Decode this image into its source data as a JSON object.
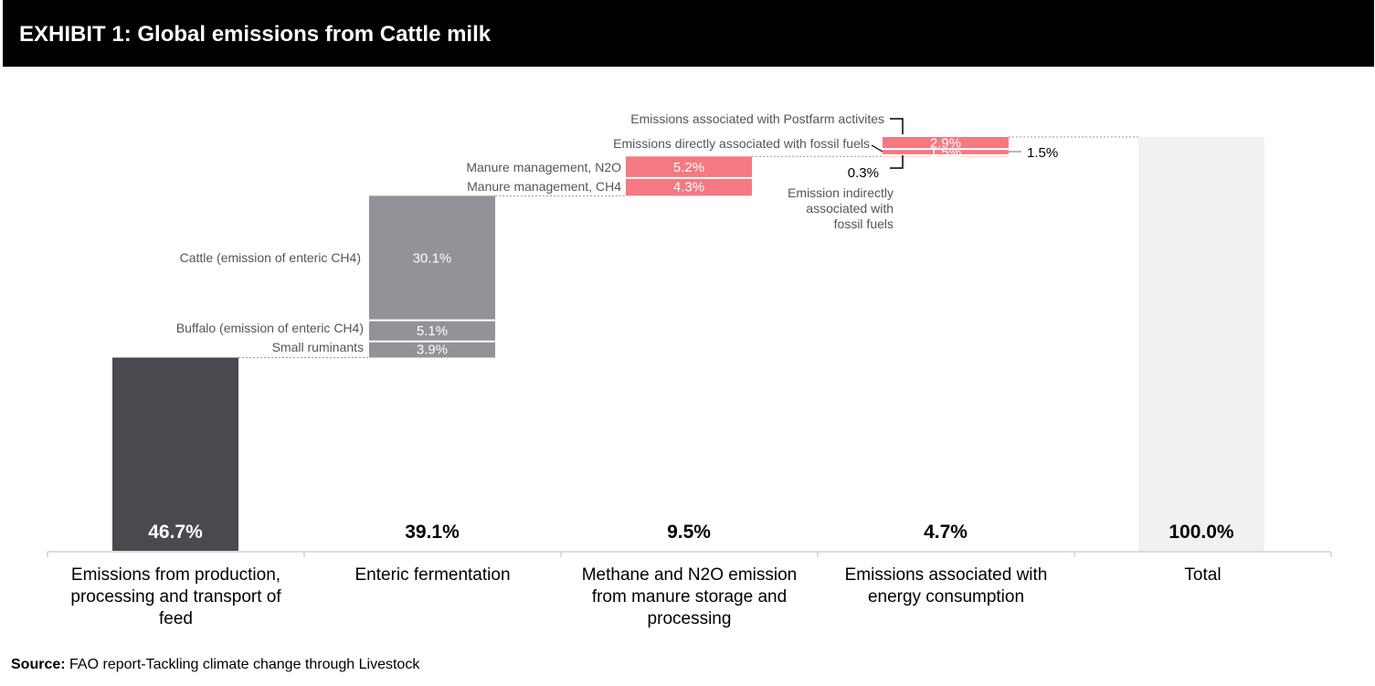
{
  "title": "EXHIBIT 1: Global emissions from Cattle milk",
  "source_label": "Source:",
  "source_text": "FAO report-Tackling climate change through Livestock",
  "colors": {
    "feed": "#4a4950",
    "enteric": "#939298",
    "manure": "#f47983",
    "energy": "#f47983",
    "total": "#f1f1f1"
  },
  "chart_data": {
    "type": "bar",
    "subtype": "waterfall",
    "ylim": [
      0,
      100
    ],
    "categories": [
      "Emissions from production, processing and transport of feed",
      "Enteric fermentation",
      "Methane and N2O emission from manure storage and processing",
      "Emissions associated with energy consumption",
      "Total"
    ],
    "totals": [
      "46.7%",
      "39.1%",
      "9.5%",
      "4.7%",
      "100.0%"
    ],
    "values": [
      46.7,
      39.1,
      9.5,
      4.7,
      100.0
    ],
    "segments": [
      [
        {
          "label": "",
          "value": 46.7,
          "text": "46.7%",
          "color": "#4a4950"
        }
      ],
      [
        {
          "label": "Small ruminants",
          "value": 3.9,
          "text": "3.9%",
          "color": "#939298"
        },
        {
          "label": "Buffalo (emission of enteric CH4)",
          "value": 5.1,
          "text": "5.1%",
          "color": "#939298"
        },
        {
          "label": "Cattle (emission of enteric CH4)",
          "value": 30.1,
          "text": "30.1%",
          "color": "#939298"
        }
      ],
      [
        {
          "label": "Manure management, CH4",
          "value": 4.3,
          "text": "4.3%",
          "color": "#f47983"
        },
        {
          "label": "Manure management, N2O",
          "value": 5.2,
          "text": "5.2%",
          "color": "#f47983"
        }
      ],
      [
        {
          "label": "Emission indirectly associated with fossil fuels",
          "value": 0.3,
          "text": "0.3%",
          "color": "#f47983"
        },
        {
          "label": "Emissions directly associated with fossil fuels",
          "value": 1.5,
          "text": "1.5%",
          "color": "#f47983"
        },
        {
          "label": "Emissions associated with Postfarm activites",
          "value": 2.9,
          "text": "2.9%",
          "color": "#f47983"
        }
      ],
      [
        {
          "label": "",
          "value": 100.0,
          "text": "",
          "color": "#f1f1f1"
        }
      ]
    ]
  }
}
